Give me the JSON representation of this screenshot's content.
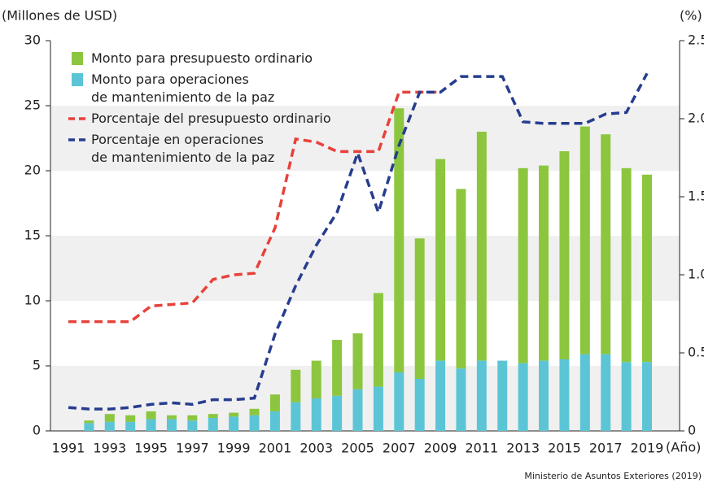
{
  "chart_data": {
    "type": "bar_line",
    "y_label": "(Millones de USD)",
    "y2_label": "(%)",
    "x_label": "(Año)",
    "source": "Ministerio de Asuntos Exteriores (2019)",
    "categories": [
      "1991",
      null,
      "1993",
      null,
      "1995",
      null,
      "1997",
      null,
      "1999",
      null,
      "2001",
      null,
      "2003",
      null,
      "2005",
      null,
      "2007",
      null,
      "2009",
      null,
      "2011",
      null,
      "2013",
      null,
      "2015",
      null,
      "2017",
      null,
      "2019"
    ],
    "series": [
      {
        "name": "Monto para operaciones\nde mantenimiento de la paz",
        "color": "#5bc5d6",
        "kind": "bar",
        "values": [
          null,
          0.6,
          0.7,
          0.7,
          0.9,
          0.9,
          0.8,
          1.0,
          1.1,
          1.2,
          1.5,
          2.2,
          2.5,
          2.7,
          3.2,
          3.4,
          4.5,
          4.0,
          5.4,
          4.8,
          5.4,
          5.4,
          5.2,
          5.4,
          5.5,
          5.9,
          5.9,
          5.3,
          5.3
        ]
      },
      {
        "name": "Monto para presupuesto ordinario",
        "color": "#8cc63f",
        "kind": "bar",
        "values": [
          null,
          0.2,
          0.6,
          0.5,
          0.6,
          0.3,
          0.4,
          0.3,
          0.3,
          0.5,
          1.3,
          2.5,
          2.9,
          4.3,
          4.3,
          7.2,
          20.3,
          10.8,
          15.5,
          13.8,
          17.6,
          0,
          15.0,
          15.0,
          16.0,
          17.5,
          16.9,
          14.9,
          14.4
        ]
      },
      {
        "name": "Porcentaje del presupuesto ordinario",
        "color": "#e8413a",
        "kind": "line",
        "axis": "y2",
        "values": [
          0.7,
          0.7,
          0.7,
          0.7,
          0.8,
          0.81,
          0.82,
          0.97,
          1.0,
          1.01,
          1.3,
          1.87,
          1.85,
          1.79,
          1.79,
          1.79,
          2.17,
          2.17,
          2.17,
          null,
          null,
          null,
          null,
          null,
          null,
          null,
          null,
          null,
          null
        ]
      },
      {
        "name": "Porcentaje en operaciones\nde mantenimiento de la paz",
        "color": "#263d8f",
        "kind": "line",
        "axis": "y2",
        "values": [
          0.15,
          0.14,
          0.14,
          0.15,
          0.17,
          0.18,
          0.17,
          0.2,
          0.2,
          0.21,
          0.62,
          0.93,
          1.19,
          1.4,
          1.78,
          1.4,
          1.83,
          2.17,
          2.17,
          2.27,
          2.27,
          2.27,
          1.98,
          1.97,
          1.97,
          1.97,
          2.03,
          2.04,
          2.29
        ]
      }
    ],
    "legend_order": [
      1,
      0,
      2,
      3
    ],
    "ylim": [
      0,
      30
    ],
    "yticks": [
      0,
      5,
      10,
      15,
      20,
      25,
      30
    ],
    "y2lim": [
      0,
      2.5
    ],
    "y2ticks": [
      0,
      {
        "value": 0.5,
        "label": "0.5"
      },
      {
        "value": 1,
        "label": "1.0"
      },
      {
        "value": 1.5,
        "label": "1.5"
      },
      {
        "value": 2,
        "label": "2.0"
      },
      {
        "value": 2.5,
        "label": "2.5"
      }
    ],
    "banded_grid": true,
    "stacked": true,
    "legend": "upper left"
  }
}
